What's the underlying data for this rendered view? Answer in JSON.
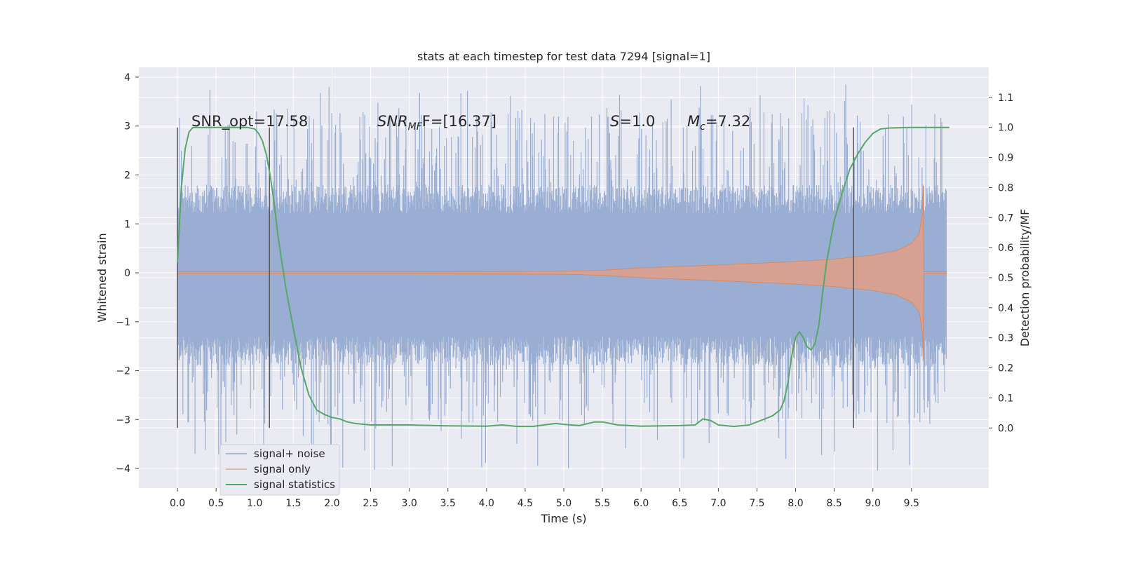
{
  "chart_data": {
    "type": "line",
    "title": "stats at each timestep for test data 7294 [signal=1]",
    "xlabel": "Time (s)",
    "ylabel_left": "Whitened strain",
    "ylabel_right": "Detection probability/MF",
    "xlim": [
      -0.5,
      10.5
    ],
    "ylim_left": [
      -4.4,
      4.2
    ],
    "ylim_right": [
      -0.2,
      1.2
    ],
    "x_ticks": [
      "0.0",
      "0.5",
      "1.0",
      "1.5",
      "2.0",
      "2.5",
      "3.0",
      "3.5",
      "4.0",
      "4.5",
      "5.0",
      "5.5",
      "6.0",
      "6.5",
      "7.0",
      "7.5",
      "8.0",
      "8.5",
      "9.0",
      "9.5"
    ],
    "y_ticks_left": [
      "4",
      "3",
      "2",
      "1",
      "0",
      "−1",
      "−2",
      "−3",
      "−4"
    ],
    "y_ticks_right": [
      "1.1",
      "1.0",
      "0.9",
      "0.8",
      "0.7",
      "0.6",
      "0.5",
      "0.4",
      "0.3",
      "0.2",
      "0.1",
      "0.0"
    ],
    "grid": true,
    "legend_position": "lower-left",
    "annotations": {
      "snr_opt": "SNR_opt=17.58",
      "snr_mf_main": "SNR",
      "snr_mf_sub": "MF",
      "snr_mf_value": "F=[16.37]",
      "s_main": "S",
      "s_value": "=1.0",
      "mc_main": "M",
      "mc_sub": "c",
      "mc_value": "=7.32"
    },
    "vertical_markers_s": [
      0.0,
      1.19,
      8.75
    ],
    "series": [
      {
        "name": "signal+ noise",
        "color": "#4c72b0",
        "axis": "left",
        "description_values": {
          "x_start": 0.0,
          "x_end": 9.95,
          "body_min": -1.3,
          "body_max": 1.2,
          "spike_min": -4.05,
          "spike_max": 3.85
        }
      },
      {
        "name": "signal only",
        "color": "#dd8452",
        "axis": "left",
        "envelope": {
          "x": [
            0.0,
            3.0,
            5.0,
            5.5,
            6.0,
            7.0,
            8.0,
            8.5,
            9.0,
            9.3,
            9.5,
            9.6,
            9.64,
            9.65,
            9.66,
            9.95
          ],
          "amplitude": [
            0.02,
            0.02,
            0.03,
            0.05,
            0.1,
            0.16,
            0.23,
            0.28,
            0.36,
            0.45,
            0.6,
            0.8,
            1.2,
            1.8,
            0.02,
            0.02
          ]
        }
      },
      {
        "name": "signal statistics",
        "color": "#55a868",
        "axis": "right",
        "x": [
          0.0,
          0.05,
          0.1,
          0.15,
          0.2,
          0.3,
          0.5,
          0.7,
          0.9,
          1.0,
          1.05,
          1.1,
          1.15,
          1.2,
          1.25,
          1.3,
          1.4,
          1.5,
          1.6,
          1.7,
          1.8,
          1.9,
          2.0,
          2.1,
          2.2,
          2.3,
          2.5,
          3.0,
          3.5,
          4.0,
          4.2,
          4.4,
          4.6,
          4.8,
          4.9,
          5.0,
          5.2,
          5.4,
          5.5,
          5.7,
          6.0,
          6.5,
          6.7,
          6.8,
          6.9,
          7.0,
          7.2,
          7.4,
          7.6,
          7.7,
          7.8,
          7.85,
          7.9,
          7.95,
          8.0,
          8.05,
          8.1,
          8.15,
          8.2,
          8.25,
          8.3,
          8.35,
          8.4,
          8.5,
          8.6,
          8.7,
          8.8,
          8.9,
          9.0,
          9.1,
          9.2,
          9.5,
          9.99
        ],
        "values": [
          0.55,
          0.8,
          0.93,
          0.985,
          1.0,
          1.0,
          1.0,
          1.0,
          1.0,
          0.995,
          0.98,
          0.955,
          0.91,
          0.84,
          0.75,
          0.64,
          0.47,
          0.33,
          0.2,
          0.11,
          0.06,
          0.045,
          0.035,
          0.03,
          0.02,
          0.015,
          0.01,
          0.01,
          0.007,
          0.006,
          0.01,
          0.005,
          0.005,
          0.012,
          0.015,
          0.012,
          0.008,
          0.02,
          0.02,
          0.01,
          0.006,
          0.008,
          0.01,
          0.03,
          0.025,
          0.01,
          0.005,
          0.01,
          0.03,
          0.04,
          0.06,
          0.09,
          0.15,
          0.24,
          0.3,
          0.32,
          0.3,
          0.27,
          0.26,
          0.28,
          0.34,
          0.45,
          0.55,
          0.69,
          0.78,
          0.86,
          0.91,
          0.95,
          0.98,
          0.995,
          0.998,
          1.0,
          1.0
        ]
      }
    ]
  },
  "colors": {
    "plot_background": "#eaeaf2",
    "grid": "#ffffff",
    "text": "#262626",
    "marker": "#555555"
  }
}
